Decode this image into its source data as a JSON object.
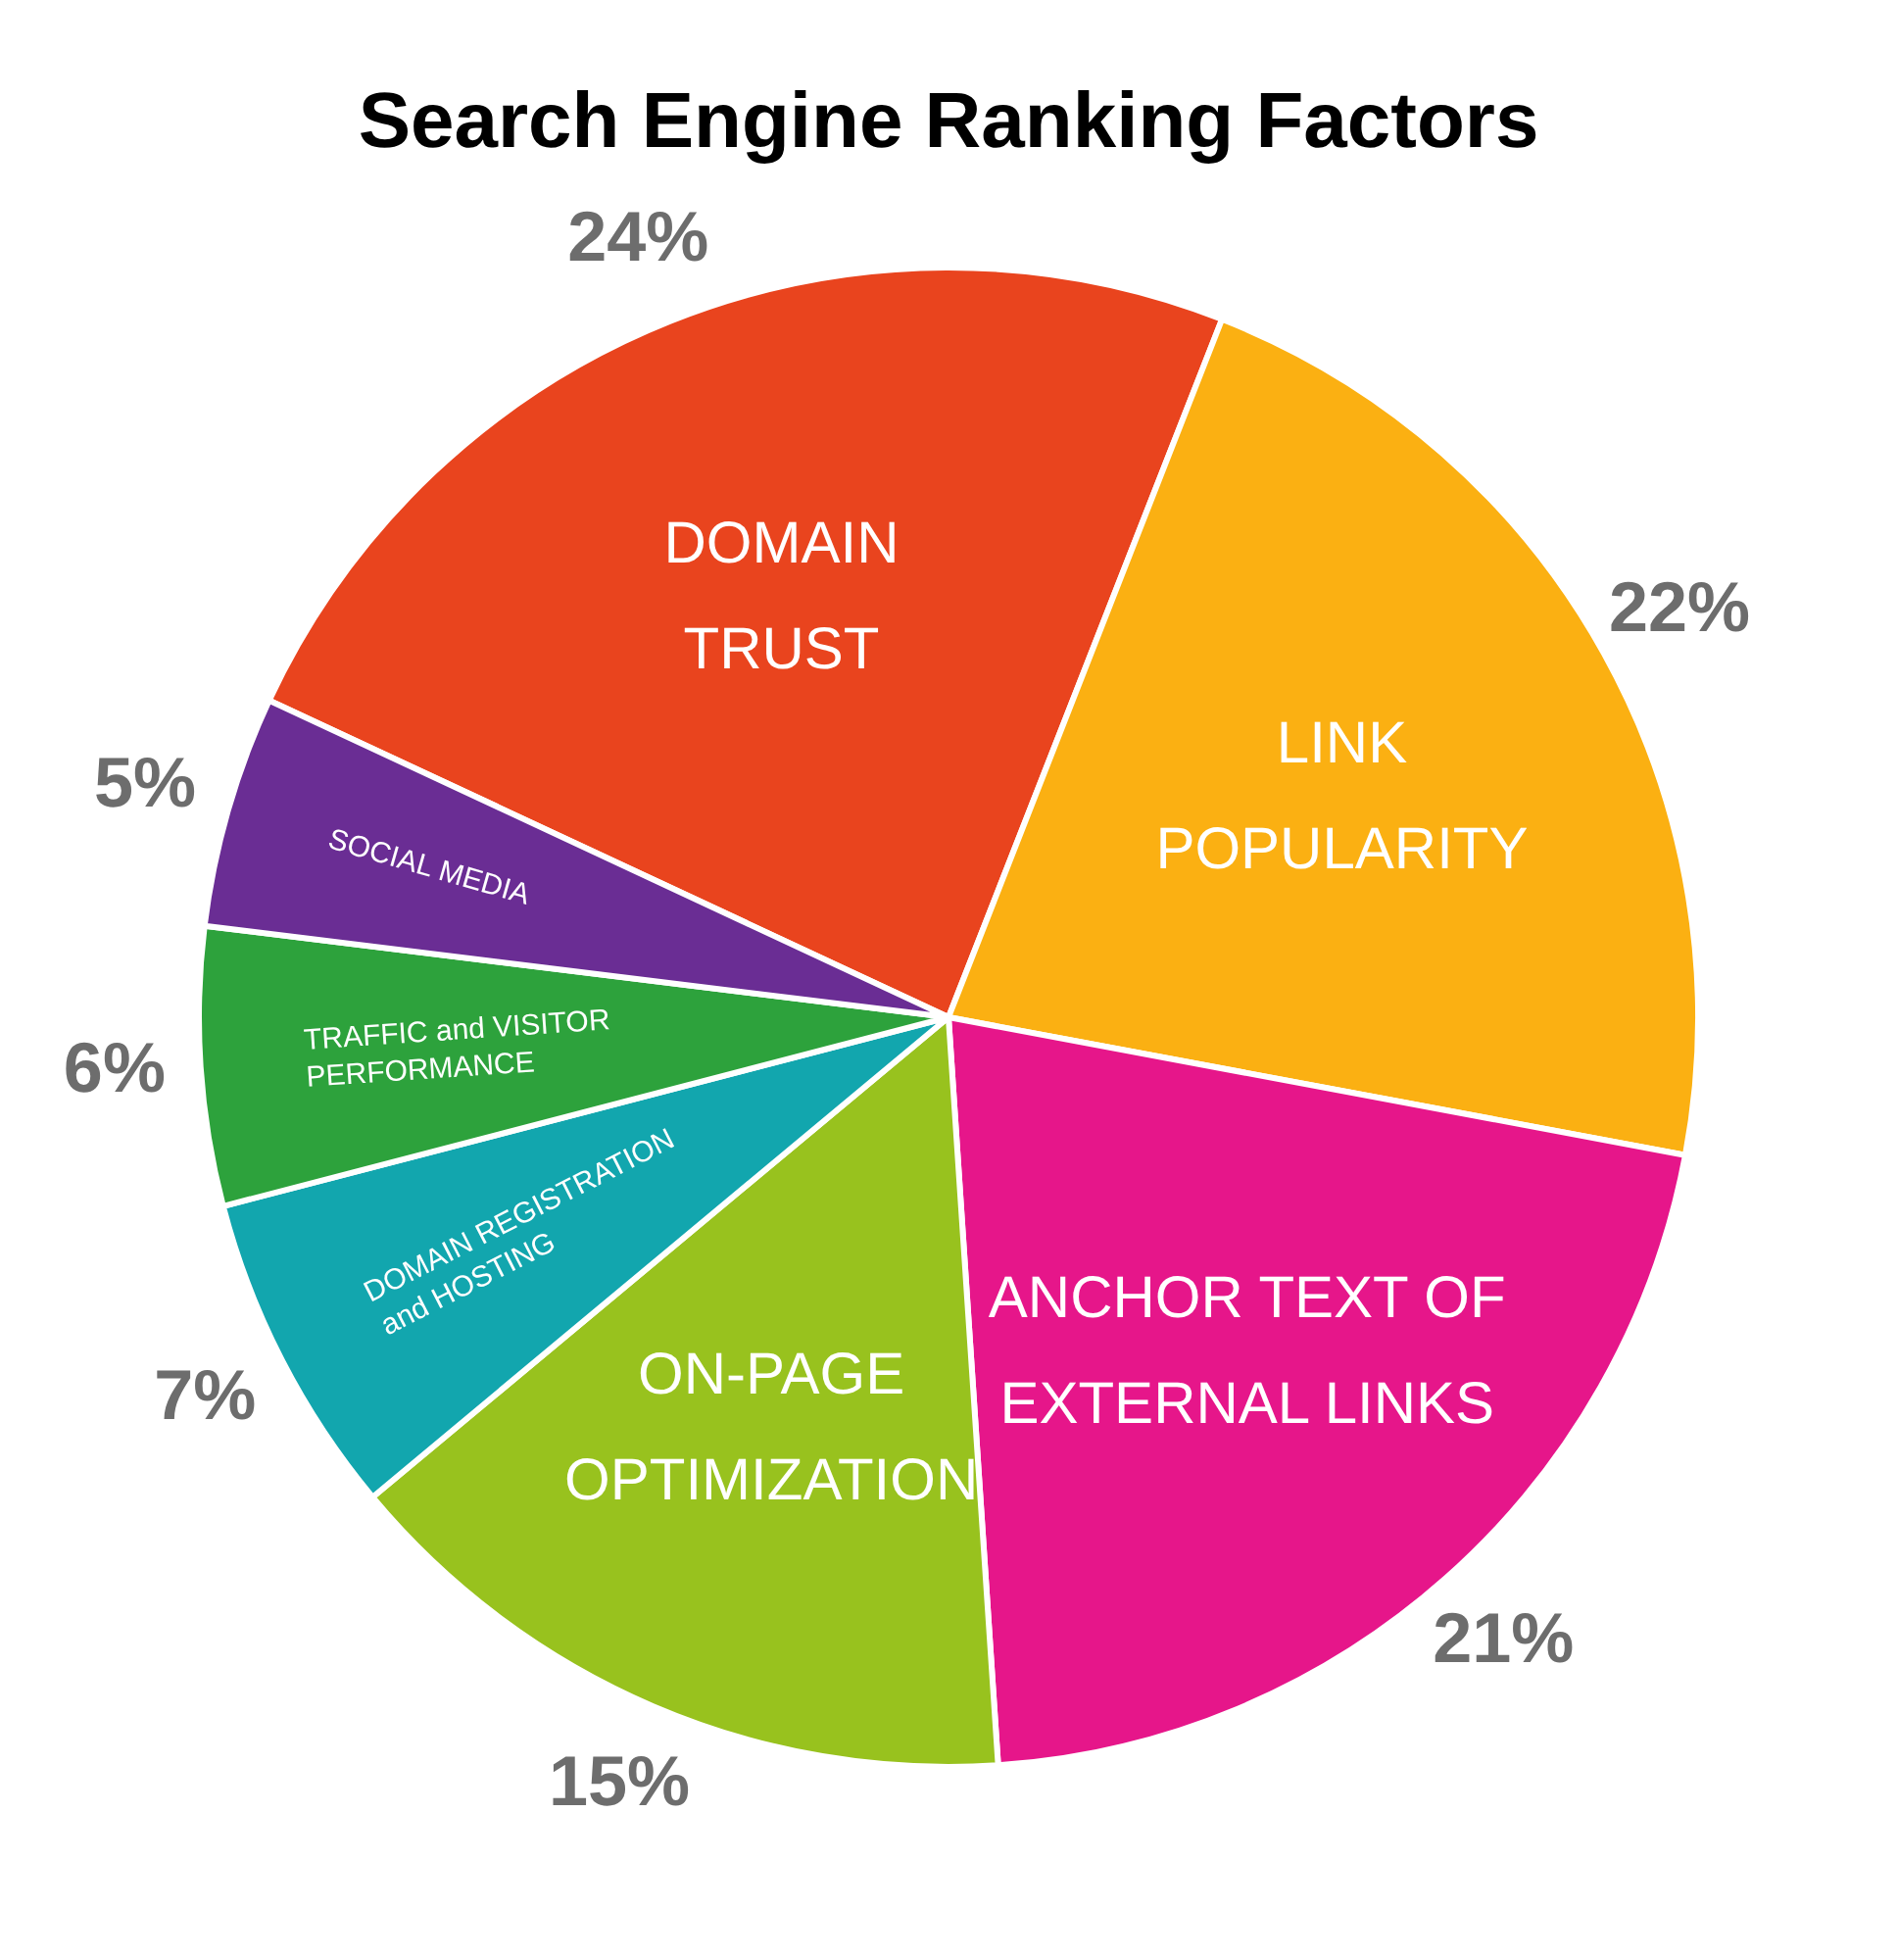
{
  "chart_data": {
    "type": "pie",
    "title": "Search Engine Ranking Factors",
    "categories": [
      "DOMAIN TRUST",
      "LINK POPULARITY",
      "ANCHOR TEXT OF EXTERNAL LINKS",
      "ON-PAGE OPTIMIZATION",
      "DOMAIN REGISTRATION and HOSTING",
      "TRAFFIC and VISITOR PERFORMANCE",
      "SOCIAL MEDIA"
    ],
    "values": [
      24,
      22,
      21,
      15,
      7,
      6,
      5
    ],
    "value_labels": [
      "24%",
      "22%",
      "21%",
      "15%",
      "7%",
      "6%",
      "5%"
    ],
    "colors": [
      "#e9441e",
      "#fbb012",
      "#e6168a",
      "#98c21e",
      "#12a6ae",
      "#2da23c",
      "#6a2d94"
    ],
    "legend": false
  }
}
